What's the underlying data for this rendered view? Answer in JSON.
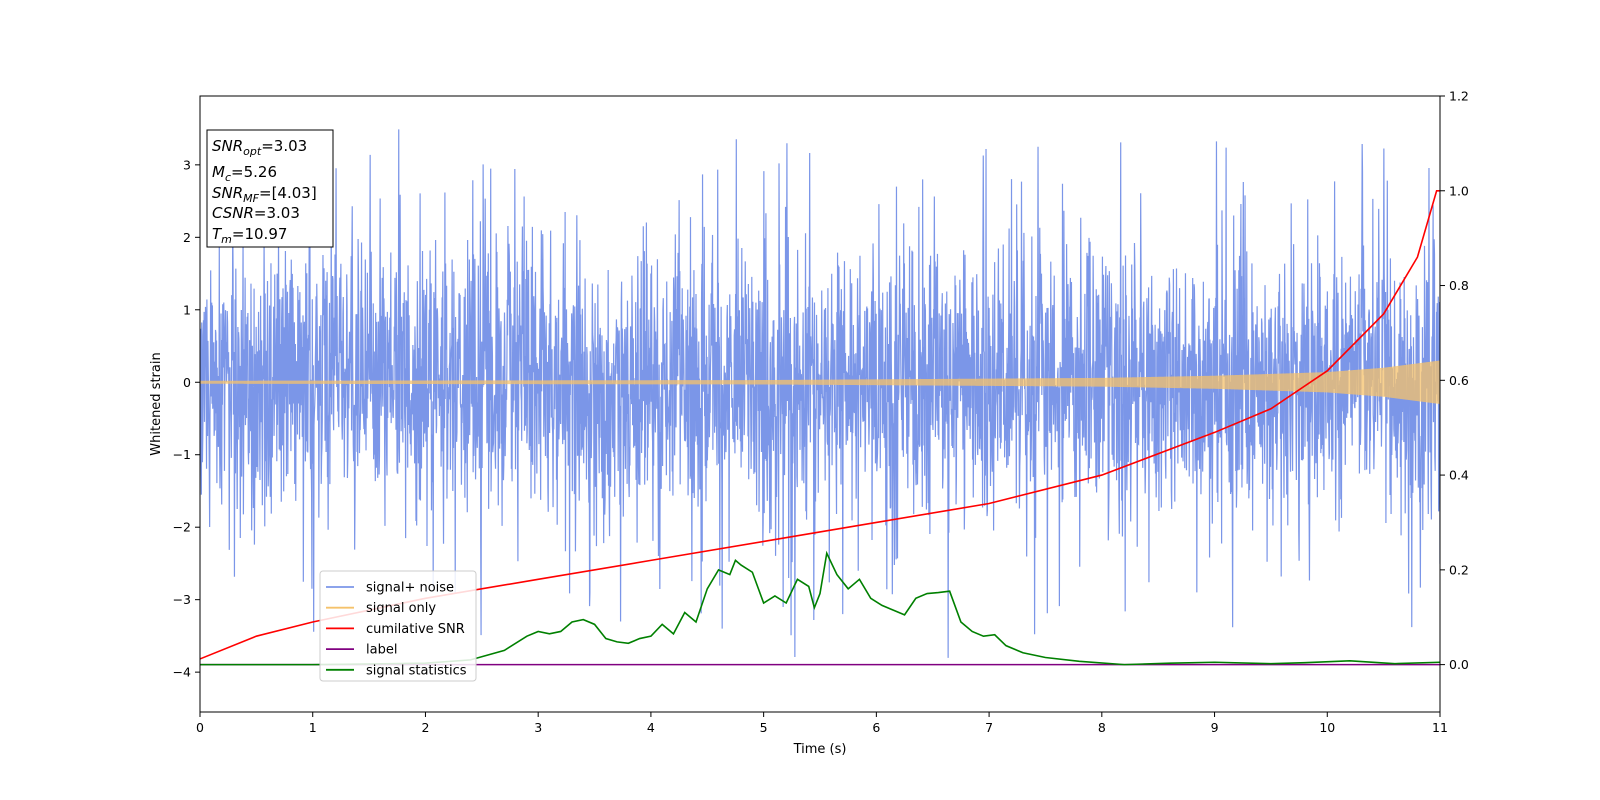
{
  "chart_data": {
    "type": "line",
    "xlabel": "Time (s)",
    "ylabel": "Whitened strain",
    "xlim": [
      0,
      11
    ],
    "ylim_left": [
      -4.55,
      3.95
    ],
    "ylim_right": [
      -0.1,
      1.2
    ],
    "grid": false,
    "legend_position": "lower-left",
    "x_ticks": [
      0,
      1,
      2,
      3,
      4,
      5,
      6,
      7,
      8,
      9,
      10,
      11
    ],
    "x_tick_labels": [
      "0",
      "1",
      "2",
      "3",
      "4",
      "5",
      "6",
      "7",
      "8",
      "9",
      "10",
      "11"
    ],
    "y_left_ticks": [
      -4,
      -3,
      -2,
      -1,
      0,
      1,
      2,
      3
    ],
    "y_left_tick_labels": [
      "−4",
      "−3",
      "−2",
      "−1",
      "0",
      "1",
      "2",
      "3"
    ],
    "y_right_ticks": [
      0.0,
      0.2,
      0.4,
      0.6,
      0.8,
      1.0,
      1.2
    ],
    "y_right_tick_labels": [
      "0.0",
      "0.2",
      "0.4",
      "0.6",
      "0.8",
      "1.0",
      "1.2"
    ],
    "annotation": {
      "snr_opt": {
        "base": "SNR",
        "sub": "opt",
        "value": "=3.03"
      },
      "mc": {
        "base": "M",
        "sub": "c",
        "value": "=5.26"
      },
      "snr_mf": {
        "base": "SNR",
        "sub": "MF",
        "value": "=[4.03]"
      },
      "csnr": {
        "base": "CSNR",
        "value": "=3.03"
      },
      "tm": {
        "base": "T",
        "sub": "m",
        "value": "=10.97"
      }
    },
    "series": [
      {
        "name": "signal+ noise",
        "axis": "left",
        "color": "#7b96e8",
        "kind": "noise",
        "approx_range": [
          -4.15,
          3.55
        ],
        "x": [
          0,
          11
        ]
      },
      {
        "name": "signal only",
        "axis": "left",
        "color": "#f5c26b",
        "kind": "chirp",
        "amplitude_at": {
          "x": [
            0,
            5,
            8,
            9,
            10,
            10.5,
            11
          ],
          "amp": [
            0.02,
            0.03,
            0.06,
            0.09,
            0.14,
            0.2,
            0.3
          ]
        }
      },
      {
        "name": "cumilative SNR",
        "axis": "right",
        "color": "#ff0000",
        "x": [
          0,
          0.5,
          1,
          2,
          3,
          4,
          5,
          6,
          7,
          8,
          9,
          9.5,
          10,
          10.5,
          10.8,
          10.97,
          11
        ],
        "y": [
          0.012,
          0.06,
          0.09,
          0.14,
          0.18,
          0.22,
          0.26,
          0.3,
          0.34,
          0.4,
          0.49,
          0.54,
          0.62,
          0.74,
          0.86,
          1.0,
          1.0
        ]
      },
      {
        "name": "label",
        "axis": "right",
        "color": "#800080",
        "x": [
          0,
          11
        ],
        "y": [
          0.0,
          0.0
        ]
      },
      {
        "name": "signal statistics",
        "axis": "right",
        "color": "#008000",
        "x": [
          0,
          1.0,
          2.0,
          2.4,
          2.7,
          2.9,
          3.0,
          3.1,
          3.2,
          3.3,
          3.4,
          3.5,
          3.6,
          3.7,
          3.8,
          3.9,
          4.0,
          4.1,
          4.2,
          4.3,
          4.4,
          4.5,
          4.6,
          4.7,
          4.75,
          4.8,
          4.9,
          5.0,
          5.1,
          5.2,
          5.3,
          5.4,
          5.45,
          5.5,
          5.56,
          5.65,
          5.75,
          5.85,
          5.95,
          6.05,
          6.15,
          6.25,
          6.35,
          6.45,
          6.55,
          6.65,
          6.75,
          6.85,
          6.95,
          7.05,
          7.15,
          7.3,
          7.5,
          7.8,
          8.2,
          8.6,
          9.0,
          9.5,
          9.8,
          10.2,
          10.6,
          11.0
        ],
        "y": [
          0.0,
          0.0,
          0.003,
          0.01,
          0.03,
          0.06,
          0.07,
          0.065,
          0.07,
          0.09,
          0.095,
          0.085,
          0.055,
          0.048,
          0.045,
          0.055,
          0.06,
          0.085,
          0.065,
          0.11,
          0.09,
          0.16,
          0.2,
          0.19,
          0.22,
          0.21,
          0.195,
          0.13,
          0.145,
          0.13,
          0.18,
          0.165,
          0.12,
          0.15,
          0.235,
          0.19,
          0.16,
          0.18,
          0.14,
          0.125,
          0.115,
          0.105,
          0.14,
          0.15,
          0.152,
          0.155,
          0.09,
          0.07,
          0.06,
          0.063,
          0.04,
          0.025,
          0.015,
          0.007,
          0.0,
          0.003,
          0.005,
          0.002,
          0.004,
          0.008,
          0.002,
          0.005
        ]
      }
    ]
  }
}
